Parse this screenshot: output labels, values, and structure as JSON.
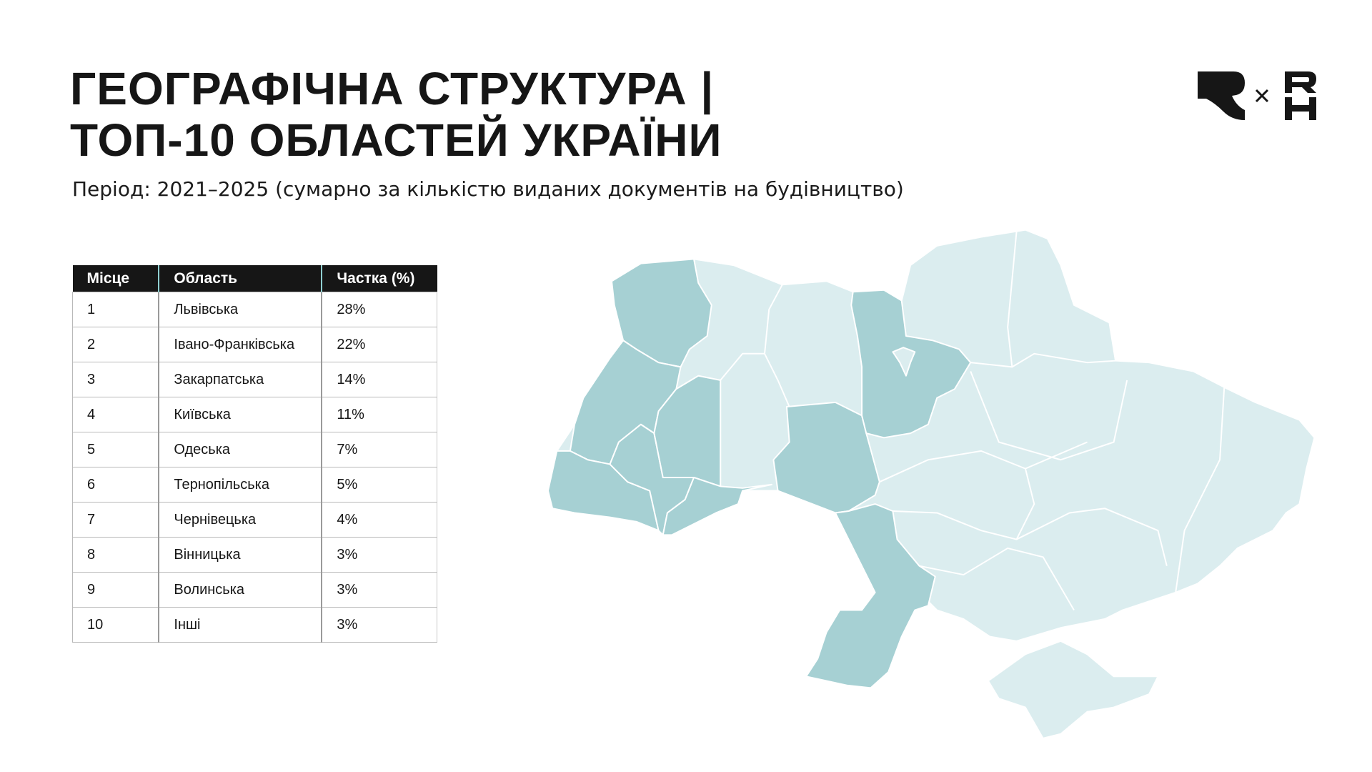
{
  "header": {
    "title_line1": "ГЕОГРАФІЧНА СТРУКТУРА |",
    "title_line2": "ТОП-10 ОБЛАСТЕЙ УКРАЇНИ",
    "subtitle": "Період: 2021–2025 (сумарно за кількістю виданих документів на будівництво)"
  },
  "logo": {
    "text": "R × RH"
  },
  "colors": {
    "highlight": "#a6d0d3",
    "base": "#dbedef",
    "border": "#ffffff",
    "header_bg": "#161616"
  },
  "chart_data": {
    "type": "table",
    "columns": [
      "Місце",
      "Область",
      "Частка (%)"
    ],
    "rows": [
      [
        "1",
        "Львівська",
        "28%"
      ],
      [
        "2",
        "Івано-Франківська",
        "22%"
      ],
      [
        "3",
        "Закарпатська",
        "14%"
      ],
      [
        "4",
        "Київська",
        "11%"
      ],
      [
        "5",
        "Одеська",
        "7%"
      ],
      [
        "6",
        "Тернопільська",
        "5%"
      ],
      [
        "7",
        "Чернівецька",
        "4%"
      ],
      [
        "8",
        "Вінницька",
        "3%"
      ],
      [
        "9",
        "Волинська",
        "3%"
      ],
      [
        "10",
        "Інші",
        "3%"
      ]
    ],
    "map_highlighted_regions": [
      "Волинська",
      "Львівська",
      "Закарпатська",
      "Івано-Франківська",
      "Тернопільська",
      "Чернівецька",
      "Вінницька",
      "Київська",
      "Одеська"
    ]
  }
}
